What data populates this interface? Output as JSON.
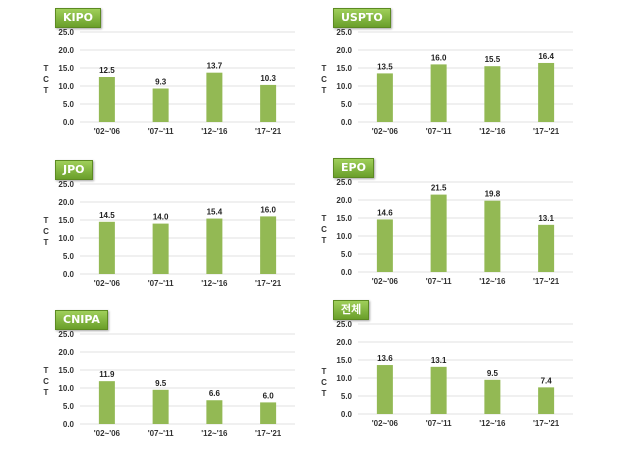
{
  "colors": {
    "bar": "#93b954",
    "grid": "#e2e2e2",
    "badge": "#7aac34"
  },
  "chart_data": [
    {
      "type": "bar",
      "title": "KIPO",
      "ylabel": "TCT",
      "ylim": [
        0,
        25
      ],
      "yticks": [
        "0.0",
        "5.0",
        "10.0",
        "15.0",
        "20.0",
        "25.0"
      ],
      "categories": [
        "'02~'06",
        "'07~'11",
        "'12~'16",
        "'17~'21"
      ],
      "values": [
        12.5,
        9.3,
        13.7,
        10.3
      ],
      "labels": [
        "12.5",
        "9.3",
        "13.7",
        "10.3"
      ]
    },
    {
      "type": "bar",
      "title": "USPTO",
      "ylabel": "TCT",
      "ylim": [
        0,
        25
      ],
      "yticks": [
        "0.0",
        "5.0",
        "10.0",
        "15.0",
        "20.0",
        "25.0"
      ],
      "categories": [
        "'02~'06",
        "'07~'11",
        "'12~'16",
        "'17~'21"
      ],
      "values": [
        13.5,
        16.0,
        15.5,
        16.4
      ],
      "labels": [
        "13.5",
        "16.0",
        "15.5",
        "16.4"
      ]
    },
    {
      "type": "bar",
      "title": "JPO",
      "ylabel": "TCT",
      "ylim": [
        0,
        25
      ],
      "yticks": [
        "0.0",
        "5.0",
        "10.0",
        "15.0",
        "20.0",
        "25.0"
      ],
      "categories": [
        "'02~'06",
        "'07~'11",
        "'12~'16",
        "'17~'21"
      ],
      "values": [
        14.5,
        14.0,
        15.4,
        16.0
      ],
      "labels": [
        "14.5",
        "14.0",
        "15.4",
        "16.0"
      ]
    },
    {
      "type": "bar",
      "title": "EPO",
      "ylabel": "TCT",
      "ylim": [
        0,
        25
      ],
      "yticks": [
        "0.0",
        "5.0",
        "10.0",
        "15.0",
        "20.0",
        "25.0"
      ],
      "categories": [
        "'02~'06",
        "'07~'11",
        "'12~'16",
        "'17~'21"
      ],
      "values": [
        14.6,
        21.5,
        19.8,
        13.1
      ],
      "labels": [
        "14.6",
        "21.5",
        "19.8",
        "13.1"
      ]
    },
    {
      "type": "bar",
      "title": "CNIPA",
      "ylabel": "TCT",
      "ylim": [
        0,
        25
      ],
      "yticks": [
        "0.0",
        "5.0",
        "10.0",
        "15.0",
        "20.0",
        "25.0"
      ],
      "categories": [
        "'02~'06",
        "'07~'11",
        "'12~'16",
        "'17~'21"
      ],
      "values": [
        11.9,
        9.5,
        6.6,
        6.0
      ],
      "labels": [
        "11.9",
        "9.5",
        "6.6",
        "6.0"
      ]
    },
    {
      "type": "bar",
      "title": "전체",
      "ylabel": "TCT",
      "ylim": [
        0,
        25
      ],
      "yticks": [
        "0.0",
        "5.0",
        "10.0",
        "15.0",
        "20.0",
        "25.0"
      ],
      "categories": [
        "'02~'06",
        "'07~'11",
        "'12~'16",
        "'17~'21"
      ],
      "values": [
        13.6,
        13.1,
        9.5,
        7.4
      ],
      "labels": [
        "13.6",
        "13.1",
        "9.5",
        "7.4"
      ]
    }
  ]
}
